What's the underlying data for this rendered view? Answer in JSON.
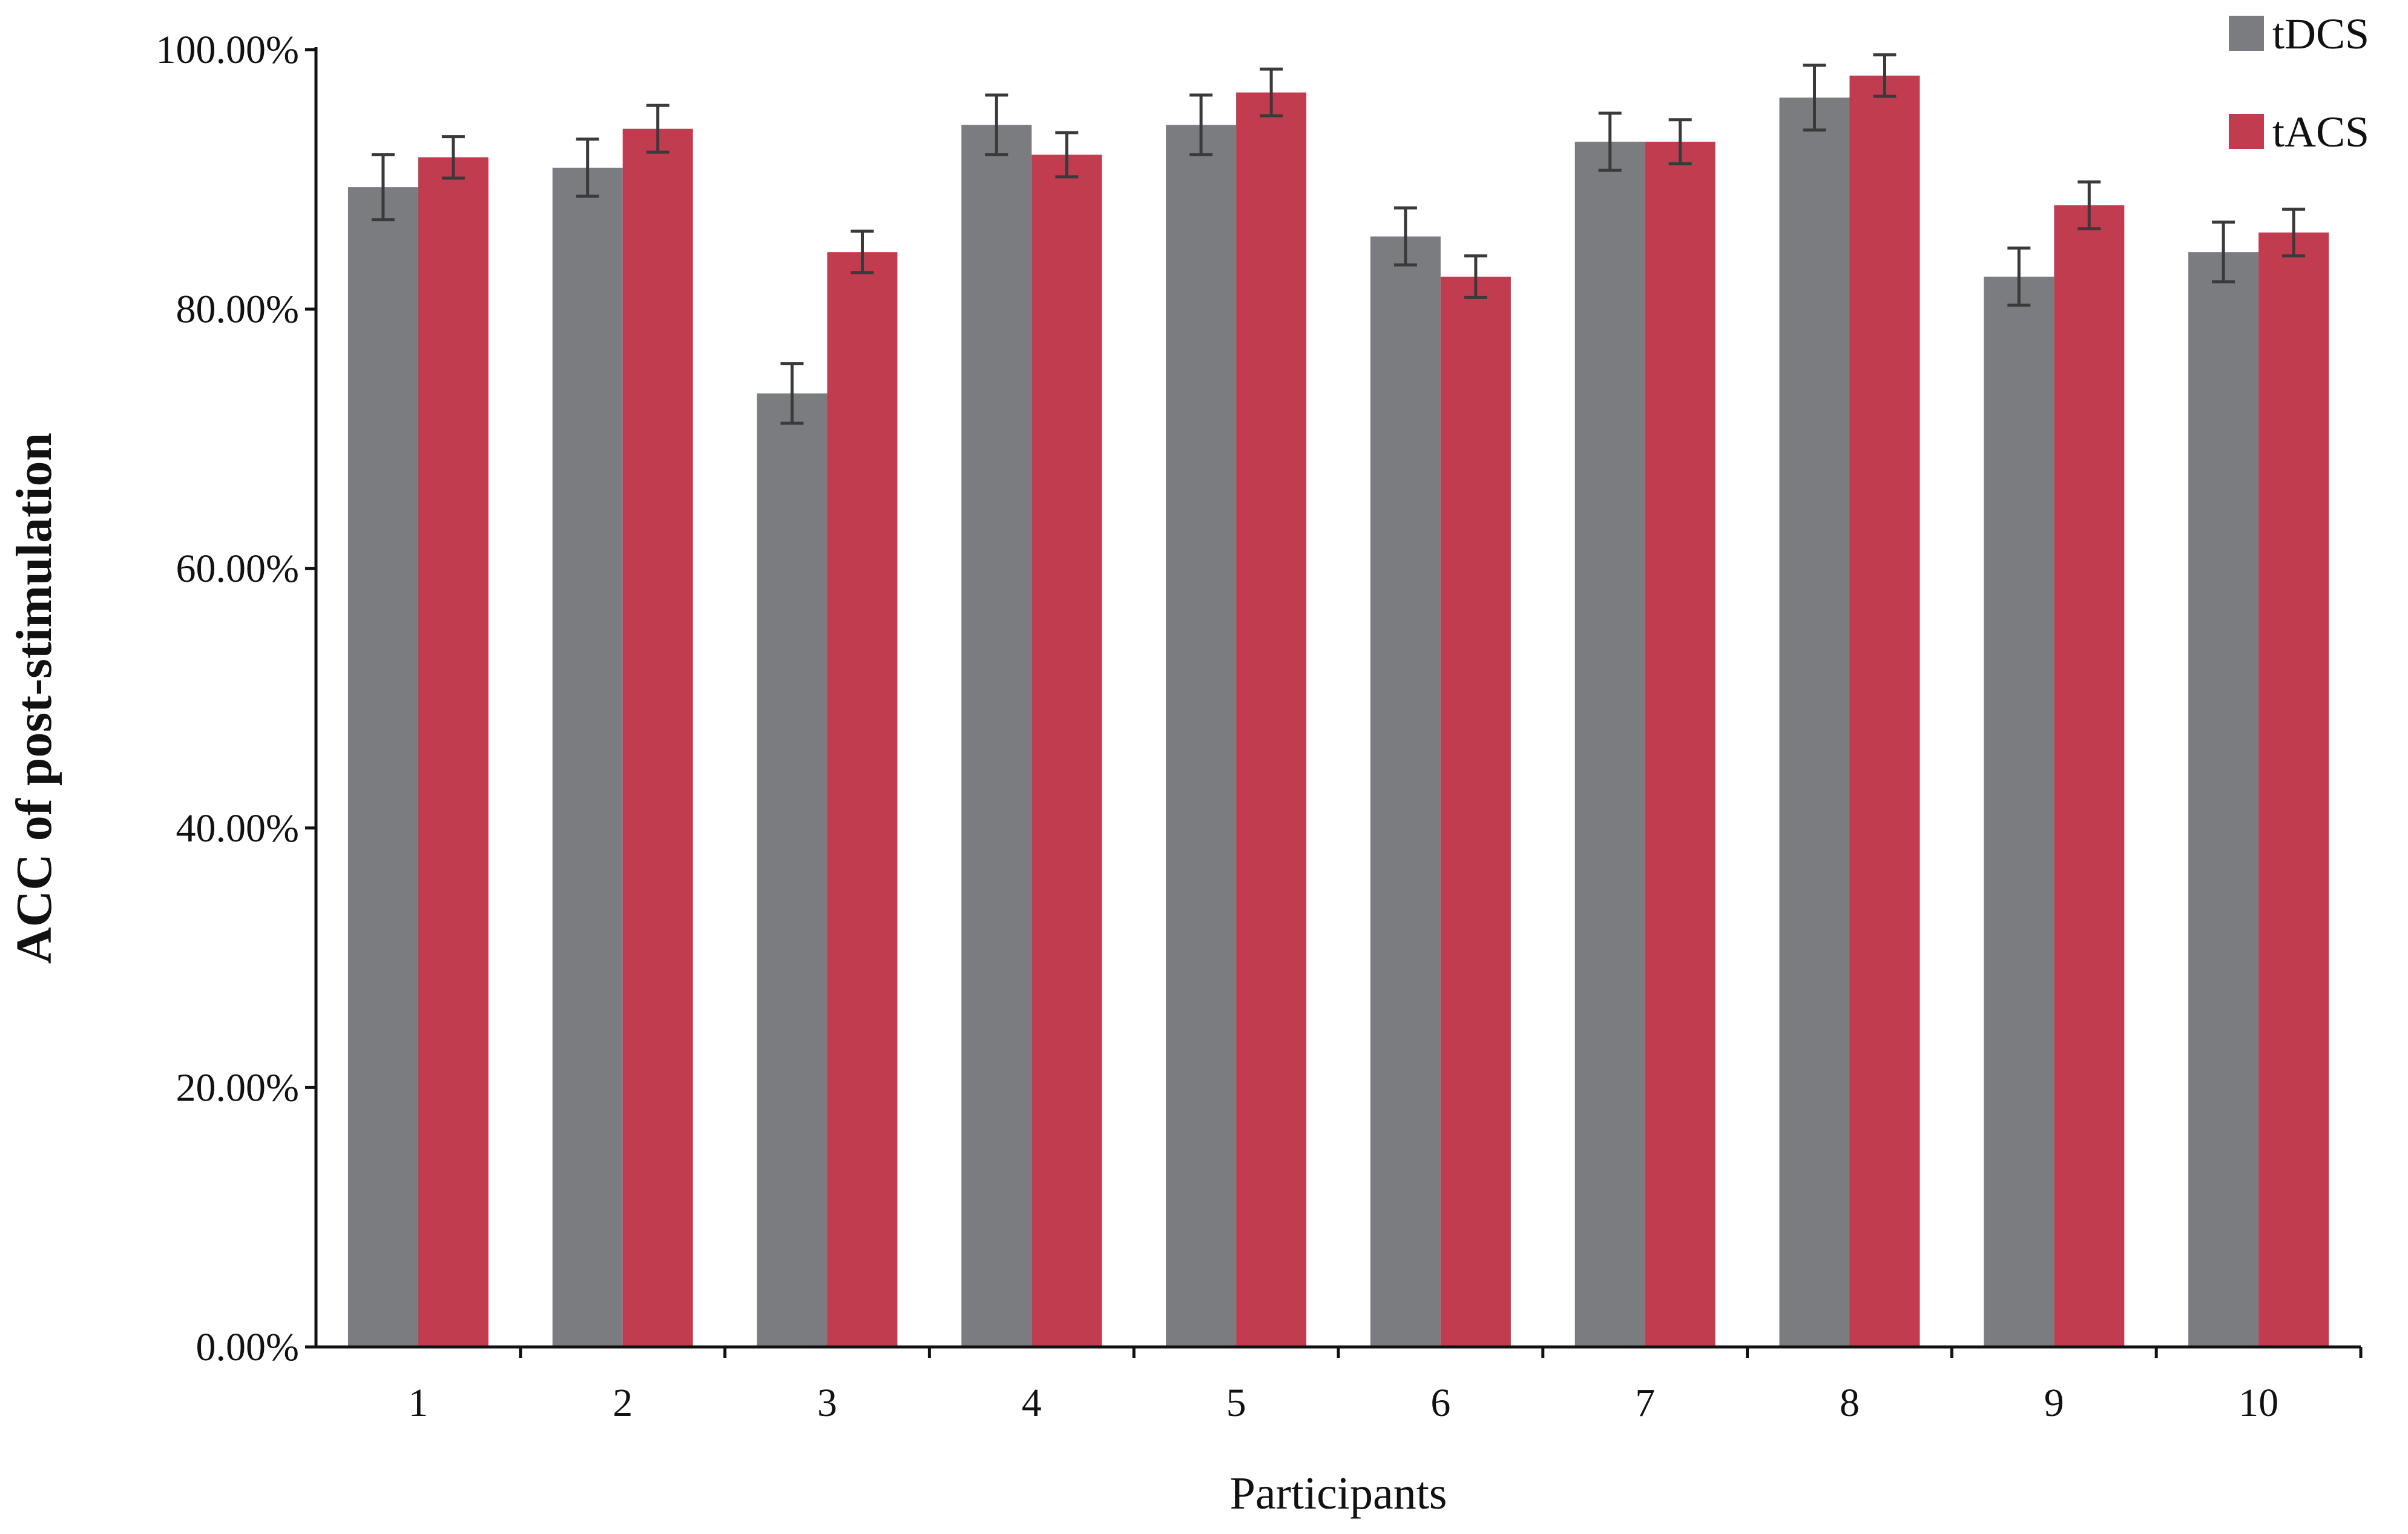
{
  "colors": {
    "tDCS": "#7b7c80",
    "tACS": "#c23c4f",
    "axis": "#111111",
    "error_bar": "#3a3a3a"
  },
  "chart_data": {
    "type": "bar",
    "title": "",
    "xlabel": "Participants",
    "ylabel": "ACC of post-stimulation",
    "ylim": [
      0,
      100
    ],
    "y_unit": "percent",
    "y_ticks": [
      0,
      20,
      40,
      60,
      80,
      100
    ],
    "y_tick_labels": [
      "0.00%",
      "20.00%",
      "40.00%",
      "60.00%",
      "80.00%",
      "100.00%"
    ],
    "grid": false,
    "legend_position": "top-right",
    "categories": [
      "1",
      "2",
      "3",
      "4",
      "5",
      "6",
      "7",
      "8",
      "9",
      "10"
    ],
    "series": [
      {
        "name": "tDCS",
        "values": [
          89.4,
          90.9,
          73.5,
          94.2,
          94.2,
          85.6,
          92.9,
          96.3,
          82.5,
          84.4
        ],
        "errors": [
          2.5,
          2.2,
          2.3,
          2.3,
          2.3,
          2.2,
          2.2,
          2.5,
          2.2,
          2.3
        ]
      },
      {
        "name": "tACS",
        "values": [
          91.7,
          93.9,
          84.4,
          91.9,
          96.7,
          82.5,
          92.9,
          98.0,
          88.0,
          85.9
        ],
        "errors": [
          1.6,
          1.8,
          1.6,
          1.7,
          1.8,
          1.6,
          1.7,
          1.6,
          1.8,
          1.8
        ]
      }
    ]
  }
}
